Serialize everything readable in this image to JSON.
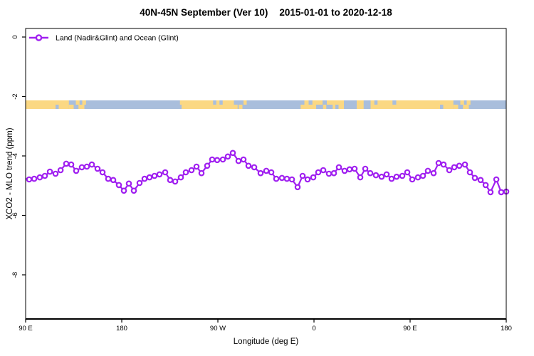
{
  "title": {
    "left": "40N-45N September (Ver 10)",
    "right": "2015-01-01 to 2020-12-18"
  },
  "legend": {
    "label": "Land (Nadir&Glint) and Ocean (Glint)",
    "marker": "open-circle",
    "color": "#A020F0"
  },
  "axes": {
    "x_title": "Longitude (deg E)",
    "y_title": "XCO2 - MLO trend (ppm)"
  },
  "colors": {
    "series_purple": "#A020F0",
    "land_yellow": "#FBD883",
    "ocean_blue": "#A9BEDC",
    "axis_black": "#000000"
  },
  "chart_data": {
    "type": "line",
    "title": "40N-45N September (Ver 10)   2015-01-01 to 2020-12-18",
    "xlabel": "Longitude (deg E)",
    "ylabel": "XCO2 - MLO trend (ppm)",
    "xlim": [
      90,
      540
    ],
    "ylim": [
      -9.5,
      0.3
    ],
    "grid": false,
    "legend_position": "top-left",
    "x_ticks": [
      {
        "v": 90,
        "label": "90 E"
      },
      {
        "v": 180,
        "label": "180"
      },
      {
        "v": 270,
        "label": "90 W"
      },
      {
        "v": 360,
        "label": "0"
      },
      {
        "v": 450,
        "label": "90 E"
      },
      {
        "v": 540,
        "label": "180"
      }
    ],
    "y_ticks": [
      {
        "v": 0,
        "label": "0"
      },
      {
        "v": -2,
        "label": "-2"
      },
      {
        "v": -4,
        "label": "-4"
      },
      {
        "v": -6,
        "label": "-6"
      },
      {
        "v": -8,
        "label": "-8"
      }
    ],
    "series": [
      {
        "name": "Land (Nadir&Glint) and Ocean (Glint)",
        "color": "#A020F0",
        "marker": "open-circle",
        "line_prefix": [
          [
            90,
            -4.77
          ]
        ],
        "x": [
          93.3,
          98,
          103.3,
          108,
          112.7,
          118,
          122.7,
          128,
          132.7,
          137.3,
          142.7,
          147.3,
          152,
          157.3,
          162,
          167.3,
          172,
          177.3,
          182,
          186.7,
          191.3,
          196.7,
          201.3,
          206,
          210.7,
          215.3,
          220.7,
          225.3,
          230,
          235.3,
          240,
          245.3,
          250,
          254.7,
          260,
          264.7,
          269.3,
          274.7,
          279.3,
          284,
          289.3,
          294,
          298.7,
          304,
          310,
          315.3,
          320,
          324.7,
          330,
          334.7,
          339.3,
          344.7,
          349.3,
          354,
          359.3,
          364,
          368.7,
          374,
          378.7,
          383.3,
          388.7,
          393.3,
          398,
          403.3,
          408,
          412.7,
          418,
          423.3,
          428,
          432.7,
          437.3,
          442.7,
          447.3,
          452,
          457.3,
          462,
          466.7,
          472,
          476.7,
          481.3,
          486.7,
          491.3,
          496,
          501.3,
          506,
          510.7,
          516,
          520.7,
          525.3,
          530.7,
          535.3,
          540
        ],
        "y": [
          -4.79,
          -4.77,
          -4.72,
          -4.67,
          -4.53,
          -4.6,
          -4.48,
          -4.26,
          -4.29,
          -4.5,
          -4.38,
          -4.36,
          -4.29,
          -4.43,
          -4.55,
          -4.77,
          -4.81,
          -4.98,
          -5.17,
          -4.93,
          -5.17,
          -4.91,
          -4.77,
          -4.72,
          -4.67,
          -4.62,
          -4.55,
          -4.81,
          -4.86,
          -4.72,
          -4.55,
          -4.48,
          -4.36,
          -4.58,
          -4.33,
          -4.12,
          -4.14,
          -4.12,
          -4.02,
          -3.9,
          -4.17,
          -4.12,
          -4.33,
          -4.38,
          -4.58,
          -4.5,
          -4.55,
          -4.77,
          -4.74,
          -4.77,
          -4.79,
          -5.05,
          -4.67,
          -4.79,
          -4.72,
          -4.55,
          -4.48,
          -4.6,
          -4.58,
          -4.38,
          -4.5,
          -4.45,
          -4.43,
          -4.72,
          -4.43,
          -4.58,
          -4.65,
          -4.7,
          -4.62,
          -4.77,
          -4.7,
          -4.67,
          -4.55,
          -4.79,
          -4.72,
          -4.67,
          -4.5,
          -4.58,
          -4.24,
          -4.29,
          -4.48,
          -4.38,
          -4.33,
          -4.29,
          -4.55,
          -4.74,
          -4.81,
          -4.98,
          -5.22,
          -4.79,
          -5.22,
          -5.2
        ]
      }
    ],
    "map_strip": {
      "description": "land-ocean strip at latitude band 40N-45N",
      "y_center_ppm": -2.28,
      "ocean_color": "#A9BEDC",
      "land_color": "#FBD883",
      "ocean_base": [
        90,
        540
      ],
      "land_patches": [
        {
          "lon": [
            90,
            130.5
          ],
          "row": "full"
        },
        {
          "lon": [
            130.5,
            135
          ],
          "row": "bottom"
        },
        {
          "lon": [
            137,
            140.5
          ],
          "row": "top"
        },
        {
          "lon": [
            139.5,
            145
          ],
          "row": "bottom"
        },
        {
          "lon": [
            143,
            146.5
          ],
          "row": "top"
        },
        {
          "lon": [
            234.5,
            236.5
          ],
          "row": "top"
        },
        {
          "lon": [
            236,
            285
          ],
          "row": "full"
        },
        {
          "lon": [
            285,
            288.5
          ],
          "row": "bottom"
        },
        {
          "lon": [
            289.5,
            293
          ],
          "row": "bottom"
        },
        {
          "lon": [
            294,
            297
          ],
          "row": "top"
        },
        {
          "lon": [
            347.5,
            351
          ],
          "row": "bottom"
        },
        {
          "lon": [
            351,
            490.5
          ],
          "row": "full"
        },
        {
          "lon": [
            490.5,
            495
          ],
          "row": "bottom"
        },
        {
          "lon": [
            497,
            500.5
          ],
          "row": "top"
        },
        {
          "lon": [
            499.5,
            505
          ],
          "row": "bottom"
        },
        {
          "lon": [
            503,
            506.5
          ],
          "row": "top"
        }
      ],
      "sea_patches": [
        {
          "lon": [
            118,
            121
          ],
          "row": "bottom"
        },
        {
          "lon": [
            265.5,
            268.5
          ],
          "row": "top"
        },
        {
          "lon": [
            271.5,
            274.5
          ],
          "row": "top"
        },
        {
          "lon": [
            355,
            358.5
          ],
          "row": "top"
        },
        {
          "lon": [
            362,
            368.5
          ],
          "row": "bottom"
        },
        {
          "lon": [
            368,
            372
          ],
          "row": "top"
        },
        {
          "lon": [
            371.5,
            377.5
          ],
          "row": "bottom"
        },
        {
          "lon": [
            380,
            383
          ],
          "row": "bottom"
        },
        {
          "lon": [
            388,
            400
          ],
          "row": "full"
        },
        {
          "lon": [
            406.5,
            413
          ],
          "row": "full"
        },
        {
          "lon": [
            416.5,
            419.5
          ],
          "row": "top"
        },
        {
          "lon": [
            433.5,
            437
          ],
          "row": "top"
        },
        {
          "lon": [
            478,
            481
          ],
          "row": "bottom"
        }
      ]
    }
  }
}
